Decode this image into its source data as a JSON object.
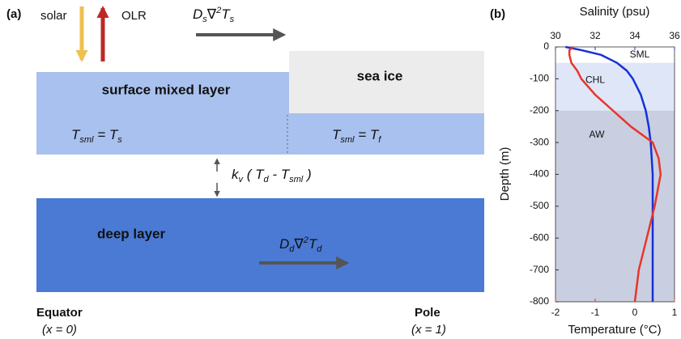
{
  "panel_a": {
    "label": "(a)",
    "solar": "solar",
    "olr": "OLR",
    "surface_flux": [
      "D",
      "s",
      "∇",
      "2",
      "T",
      "s"
    ],
    "surface_layer": "surface mixed layer",
    "sea_ice": "sea ice",
    "sml_open": [
      "T",
      "sml",
      " = T",
      "s"
    ],
    "sml_ice": [
      "T",
      "sml",
      " = T",
      "f"
    ],
    "exchange": [
      "k",
      "v",
      " ( T",
      "d",
      " - T",
      "sml",
      " )"
    ],
    "deep_layer": "deep layer",
    "deep_flux": [
      "D",
      "d",
      "∇",
      "2",
      "T",
      "d"
    ],
    "equator": "Equator",
    "equator_x": "(x = 0)",
    "pole": "Pole",
    "pole_x": "(x = 1)"
  },
  "chart_data": {
    "type": "line",
    "label": "(b)",
    "ylabel": "Depth (m)",
    "xlabel": "Temperature (°C)",
    "x2label": "Salinity (psu)",
    "ylim": [
      -800,
      0
    ],
    "yticks": [
      0,
      -100,
      -200,
      -300,
      -400,
      -500,
      -600,
      -700,
      -800
    ],
    "xlim": [
      -2,
      1
    ],
    "xticks": [
      -2,
      -1,
      0,
      1
    ],
    "xcolor": "#e8352b",
    "x2lim": [
      30,
      36
    ],
    "x2ticks": [
      30,
      32,
      34,
      36
    ],
    "x2color": "#1530d8",
    "layers": [
      {
        "name": "SML",
        "top": 0,
        "bottom": -50,
        "color": "#ffffff"
      },
      {
        "name": "CHL",
        "top": -50,
        "bottom": -200,
        "color": "#dfe6f7"
      },
      {
        "name": "AW",
        "top": -200,
        "bottom": -800,
        "color": "#c9cfe0"
      }
    ],
    "depth": [
      0,
      -10,
      -25,
      -50,
      -75,
      -100,
      -150,
      -200,
      -250,
      -300,
      -350,
      -400,
      -500,
      -600,
      -700,
      -800
    ],
    "series": [
      {
        "axis": "x2",
        "color": "#1530d8",
        "values": [
          30.5,
          31.3,
          32.3,
          33.1,
          33.6,
          33.9,
          34.3,
          34.55,
          34.7,
          34.8,
          34.85,
          34.9,
          34.9,
          34.9,
          34.9,
          34.9
        ]
      },
      {
        "axis": "x",
        "color": "#e8352b",
        "values": [
          -1.55,
          -1.65,
          -1.65,
          -1.6,
          -1.45,
          -1.35,
          -1.0,
          -0.55,
          -0.1,
          0.45,
          0.6,
          0.65,
          0.5,
          0.3,
          0.1,
          0.0
        ]
      }
    ]
  }
}
